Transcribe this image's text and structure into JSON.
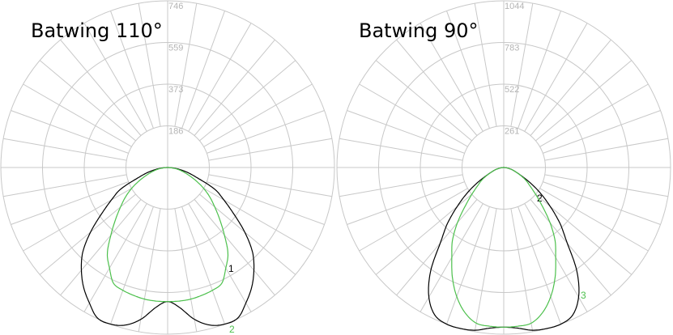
{
  "chart_data": [
    {
      "type": "polar-line",
      "title": "Batwing 110°",
      "radial_ticks": [
        "186",
        "373",
        "559",
        "746"
      ],
      "rlim": [
        0,
        746
      ],
      "angle_step_deg": 10,
      "grid": true,
      "angles_deg": [
        0,
        5,
        10,
        15,
        20,
        25,
        30,
        35,
        40,
        45,
        50,
        55,
        60,
        65,
        70,
        75,
        80,
        85,
        90
      ],
      "series": [
        {
          "name": "1",
          "color": "#000000",
          "values": [
            600,
            630,
            690,
            730,
            746,
            743,
            700,
            655,
            600,
            537,
            450,
            360,
            290,
            235,
            150,
            100,
            60,
            25,
            0
          ]
        },
        {
          "name": "2",
          "color": "#4cc04c",
          "values": [
            600,
            600,
            598,
            592,
            585,
            572,
            520,
            470,
            395,
            330,
            275,
            230,
            185,
            140,
            100,
            70,
            45,
            20,
            0
          ]
        }
      ]
    },
    {
      "type": "polar-line",
      "title": "Batwing 90°",
      "radial_ticks": [
        "261",
        "522",
        "783",
        "1044"
      ],
      "rlim": [
        0,
        1044
      ],
      "angle_step_deg": 10,
      "grid": true,
      "angles_deg": [
        0,
        5,
        10,
        15,
        20,
        25,
        30,
        35,
        40,
        45,
        50,
        55,
        60,
        65,
        70,
        75,
        80,
        85,
        90
      ],
      "series": [
        {
          "name": "2",
          "color": "#000000",
          "values": [
            1000,
            1010,
            1035,
            1044,
            1044,
            1020,
            937,
            800,
            618,
            500,
            380,
            280,
            190,
            120,
            80,
            55,
            30,
            12,
            0
          ]
        },
        {
          "name": "3",
          "color": "#4cc04c",
          "values": [
            1000,
            998,
            990,
            940,
            860,
            760,
            650,
            560,
            450,
            340,
            260,
            200,
            160,
            115,
            80,
            55,
            30,
            12,
            0
          ]
        }
      ]
    }
  ]
}
